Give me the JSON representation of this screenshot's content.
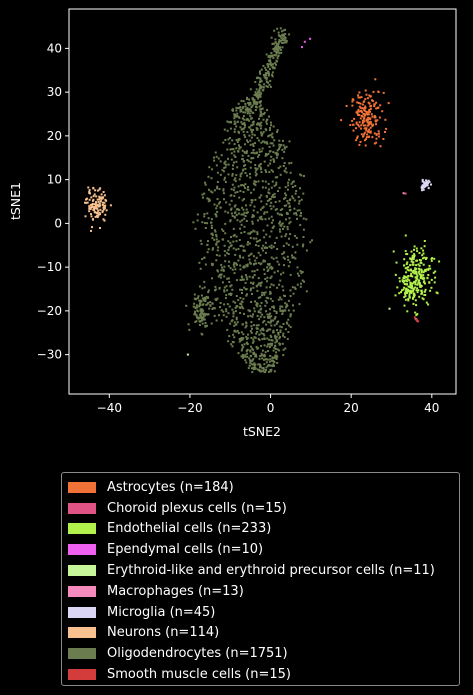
{
  "chart_data": {
    "type": "scatter",
    "xlabel": "tSNE2",
    "ylabel": "tSNE1",
    "xlim": [
      -50,
      46
    ],
    "ylim": [
      -39,
      49
    ],
    "xticks": [
      -40,
      -20,
      0,
      20,
      40
    ],
    "yticks": [
      -30,
      -20,
      -10,
      0,
      10,
      20,
      30,
      40
    ],
    "xtick_labels": [
      "−40",
      "−20",
      "0",
      "20",
      "40"
    ],
    "ytick_labels": [
      "−30",
      "−20",
      "−10",
      "0",
      "10",
      "20",
      "30",
      "40"
    ],
    "grid": false,
    "legend_position": "below",
    "background": "#000000",
    "series": [
      {
        "name": "Astrocytes (n=184)",
        "color": "#f07236",
        "n": 184,
        "points": [
          [
            24,
            24
          ],
          [
            20.5,
            29
          ],
          [
            22,
            28
          ],
          [
            23,
            21
          ],
          [
            25,
            20
          ],
          [
            26.5,
            25
          ],
          [
            24,
            18.5
          ],
          [
            22.5,
            26
          ],
          [
            27,
            22
          ],
          [
            21,
            23
          ]
        ]
      },
      {
        "name": "Choroid plexus cells (n=15)",
        "color": "#e05384",
        "n": 15,
        "points": [
          [
            33.5,
            6.8
          ],
          [
            36,
            -21.8
          ],
          [
            36.4,
            -22.3
          ]
        ]
      },
      {
        "name": "Endothelial cells (n=233)",
        "color": "#b2f04c",
        "n": 233,
        "points": [
          [
            37,
            -9
          ],
          [
            34,
            -14
          ],
          [
            35,
            -16
          ],
          [
            33,
            -10
          ],
          [
            39,
            -11
          ],
          [
            36,
            -6
          ],
          [
            32,
            -13
          ],
          [
            37,
            -17
          ],
          [
            38,
            -18
          ]
        ]
      },
      {
        "name": "Ependymal cells (n=10)",
        "color": "#f060f0",
        "n": 10,
        "points": [
          [
            8.5,
            41.5
          ],
          [
            9.8,
            42.2
          ],
          [
            7.8,
            40.3
          ]
        ]
      },
      {
        "name": "Erythroid-like and erythroid precursor cells (n=11)",
        "color": "#c7f59a",
        "n": 11,
        "points": [
          [
            29.5,
            -19.5
          ],
          [
            -20.5,
            -30
          ]
        ]
      },
      {
        "name": "Macrophages (n=13)",
        "color": "#f58bbc",
        "n": 13,
        "points": [
          [
            33,
            6.9
          ],
          [
            36.2,
            -22
          ]
        ]
      },
      {
        "name": "Microglia (n=45)",
        "color": "#dcd6f5",
        "n": 45,
        "points": [
          [
            37.5,
            9
          ],
          [
            38.5,
            8.5
          ],
          [
            39,
            9.5
          ],
          [
            37.8,
            8
          ],
          [
            38.7,
            8.2
          ]
        ]
      },
      {
        "name": "Neurons (n=114)",
        "color": "#f7c08e",
        "n": 114,
        "points": [
          [
            -44,
            4.5
          ],
          [
            -43,
            1.5
          ],
          [
            -42,
            7
          ],
          [
            -44.5,
            6.5
          ],
          [
            -41.5,
            3
          ],
          [
            -43.5,
            0.5
          ],
          [
            -40,
            5.5
          ],
          [
            -45,
            3
          ]
        ]
      },
      {
        "name": "Oligodendrocytes (n=1751)",
        "color": "#6b7d4f",
        "n": 1751,
        "points": [
          [
            0,
            0
          ],
          [
            -5,
            5
          ],
          [
            -8,
            10
          ],
          [
            -3,
            -10
          ],
          [
            2,
            -20
          ],
          [
            -10,
            -15
          ],
          [
            5,
            -25
          ],
          [
            1,
            -30
          ],
          [
            -2,
            30
          ],
          [
            -6,
            25
          ],
          [
            -15,
            0
          ],
          [
            -12,
            15
          ],
          [
            7,
            -5
          ],
          [
            5,
            10
          ],
          [
            -18,
            -10
          ],
          [
            -1,
            35
          ],
          [
            3,
            40
          ],
          [
            -16,
            -20
          ],
          [
            9,
            -22
          ],
          [
            2,
            20
          ]
        ]
      },
      {
        "name": "Smooth muscle cells (n=15)",
        "color": "#d43c3c",
        "n": 15,
        "points": [
          [
            35.8,
            -21.5
          ],
          [
            36.3,
            -22.1
          ],
          [
            36.6,
            -22.4
          ]
        ]
      }
    ]
  }
}
